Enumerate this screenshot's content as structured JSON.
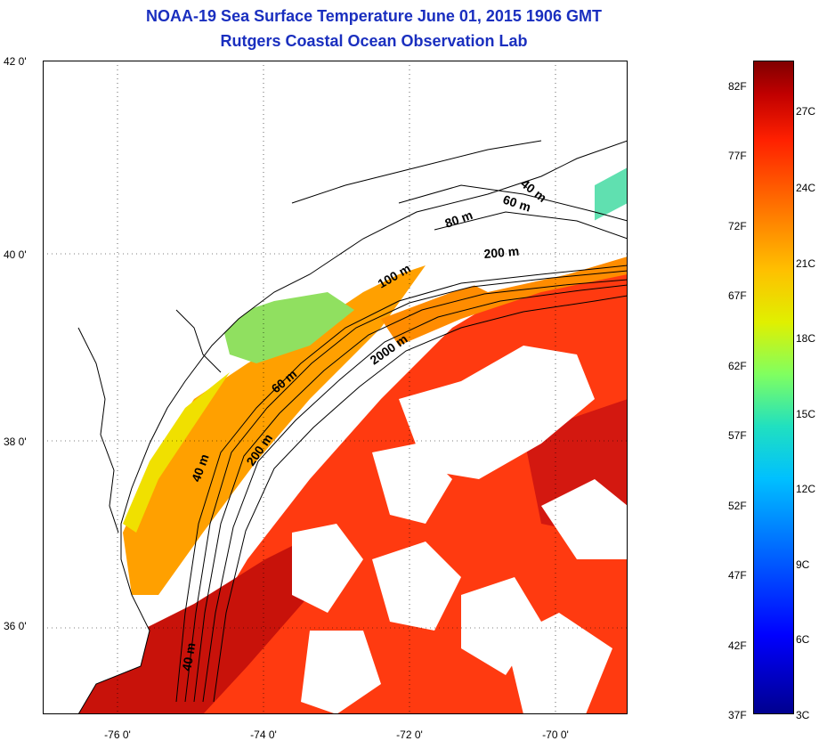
{
  "title": "NOAA-19 Sea Surface Temperature June 01, 2015 1906 GMT",
  "subtitle": "Rutgers Coastal Ocean Observation Lab",
  "lat_ticks": [
    "42 0'",
    "40 0'",
    "38 0'",
    "36 0'"
  ],
  "lon_ticks": [
    "-76 0'",
    "-74 0'",
    "-72 0'",
    "-70 0'"
  ],
  "isobath_labels": [
    "40 m",
    "60 m",
    "80 m",
    "200 m",
    "100 m",
    "2000 m",
    "60 m",
    "200 m",
    "40 m",
    "40 m"
  ],
  "colorbar": {
    "fahrenheit": [
      "82F",
      "77F",
      "72F",
      "67F",
      "62F",
      "57F",
      "52F",
      "47F",
      "42F",
      "37F"
    ],
    "celsius": [
      "27C",
      "24C",
      "21C",
      "18C",
      "15C",
      "12C",
      "9C",
      "6C",
      "3C"
    ],
    "colors": [
      "#00008f",
      "#0000ff",
      "#0060ff",
      "#00c0ff",
      "#80ff60",
      "#e0f000",
      "#ffc000",
      "#ff7000",
      "#ff2000",
      "#800000"
    ]
  },
  "map_extent": {
    "lon": [
      -77,
      -69
    ],
    "lat": [
      35,
      42
    ]
  }
}
